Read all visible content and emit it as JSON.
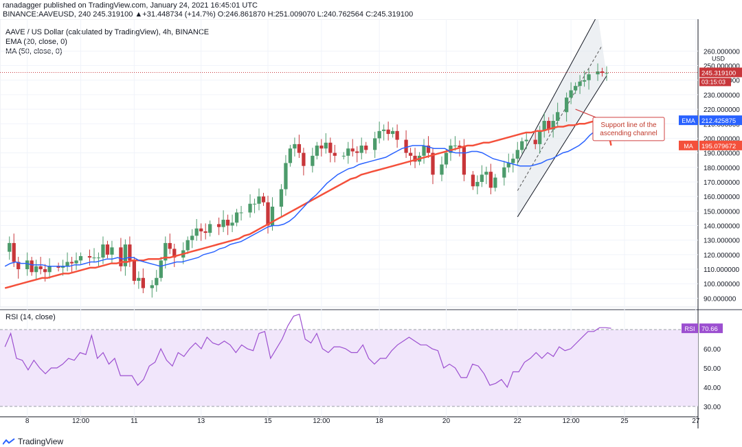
{
  "header": {
    "published_line": "ranadagger published on TradingView.com, January 24, 2021 16:45:01 UTC",
    "symbol_line": "BINANCE:AAVEUSD, 240",
    "ohlc": "245.319100 ▲+31.448734 (+14.7%) O:246.861870 H:251.009070 L:240.762564 C:245.319100"
  },
  "legend": {
    "title": "AAVE / US Dollar (calculated by TradingView), 4h, BINANCE",
    "ema": "EMA (20, close, 0)",
    "ma": "MA (50, close, 0)",
    "rsi": "RSI (14, close)"
  },
  "annotation": "Support line of the\nascending channel",
  "footer": {
    "brand": "TradingView"
  },
  "colors": {
    "up": "#4c9b6b",
    "down": "#c8363a",
    "ema": "#2962ff",
    "ma": "#f4503b",
    "rsi": "#9c4fd0",
    "channel_fill": "#dfe3ea",
    "rsi_band": "#f1e6fb"
  },
  "chart_data": {
    "type": "candlestick",
    "price_axis": {
      "unit": "USD",
      "ticks": [
        "260.000000",
        "250.000000",
        "240.000000",
        "230.000000",
        "220.000000",
        "210.000000",
        "200.000000",
        "190.000000",
        "180.000000",
        "170.000000",
        "160.000000",
        "150.000000",
        "140.000000",
        "130.000000",
        "120.000000",
        "110.000000",
        "100.000000",
        "90.000000"
      ],
      "tick_values": [
        260,
        250,
        240,
        230,
        220,
        210,
        200,
        190,
        180,
        170,
        160,
        150,
        140,
        130,
        120,
        110,
        100,
        90
      ],
      "range": [
        85,
        280
      ]
    },
    "x_axis": {
      "labels": [
        "8",
        "12:00",
        "11",
        "13",
        "15",
        "12:00",
        "18",
        "20",
        "22",
        "12:00",
        "25",
        "27"
      ],
      "label_bars": [
        5,
        17,
        29,
        44,
        59,
        71,
        84,
        99,
        115,
        127,
        139,
        155
      ],
      "bar_count": 156
    },
    "price_labels": {
      "last": {
        "value": 245.3191,
        "text": "245.319100",
        "countdown": "03:15:03"
      },
      "ema": {
        "value": 212.425875,
        "name": "EMA",
        "text": "212.425875"
      },
      "ma": {
        "value": 195.079672,
        "name": "MA",
        "text": "195.079672"
      },
      "axis_unit": "USD",
      "top_tick": "260.000000"
    },
    "closes": [
      122,
      128,
      115,
      110,
      116,
      108,
      112,
      110,
      108,
      112,
      111,
      112,
      115,
      114,
      116,
      119,
      118,
      118,
      118,
      127,
      120,
      125,
      112,
      127,
      116,
      102,
      104,
      97,
      99,
      104,
      116,
      128,
      124,
      118,
      123,
      130,
      133,
      138,
      136,
      135,
      141,
      139,
      144,
      140,
      142,
      149,
      149,
      155,
      155,
      160,
      156,
      140,
      153,
      165,
      183,
      193,
      196,
      190,
      181,
      188,
      195,
      193,
      197,
      190,
      188,
      188,
      193,
      191,
      190,
      195,
      192,
      200,
      205,
      206,
      203,
      205,
      199,
      190,
      188,
      184,
      188,
      195,
      190,
      175,
      182,
      190,
      195,
      195,
      194,
      175,
      167,
      170,
      175,
      177,
      166,
      173,
      180,
      183,
      186,
      192,
      198,
      199,
      196,
      205,
      212,
      206,
      212,
      218,
      228,
      233,
      236,
      239,
      240,
      244,
      246,
      245,
      245
    ],
    "close_bar_offset": 39,
    "early_closes": [
      122,
      128,
      115,
      110,
      116,
      108,
      112,
      110,
      108,
      112,
      111,
      112,
      115,
      114,
      116,
      119,
      118,
      118,
      118,
      127,
      120,
      125,
      112,
      127,
      116,
      102,
      104,
      97,
      99,
      104,
      116,
      128,
      124,
      118,
      123,
      130,
      133,
      138,
      136
    ],
    "ema_values": [
      112,
      114,
      115,
      114,
      114,
      113,
      113,
      113,
      112,
      112,
      112,
      112,
      112,
      113,
      113,
      114,
      115,
      115,
      116,
      117,
      117,
      118,
      117,
      118,
      118,
      116,
      115,
      114,
      113,
      112,
      113,
      114,
      115,
      115,
      116,
      117,
      118,
      120,
      121,
      122,
      124,
      125,
      127,
      128,
      129,
      131,
      133,
      135,
      137,
      139,
      140,
      140,
      141,
      143,
      146,
      150,
      154,
      158,
      161,
      165,
      169,
      172,
      175,
      177,
      179,
      180,
      182,
      183,
      184,
      185,
      186,
      187,
      189,
      191,
      193,
      194,
      195,
      195,
      195,
      194,
      193,
      193,
      193,
      191,
      190,
      190,
      190,
      191,
      191,
      190,
      188,
      186,
      185,
      184,
      183,
      182,
      181,
      181,
      181,
      182,
      183,
      185,
      186,
      188,
      190,
      191,
      193,
      195,
      198,
      202,
      205,
      208,
      211,
      212
    ],
    "ma_values": [
      97,
      98,
      99,
      100,
      101,
      102,
      103,
      104,
      104,
      105,
      106,
      107,
      107,
      108,
      109,
      110,
      111,
      111,
      112,
      113,
      114,
      114,
      115,
      115,
      116,
      116,
      116,
      117,
      117,
      117,
      118,
      118,
      119,
      120,
      121,
      122,
      123,
      124,
      125,
      126,
      127,
      128,
      129,
      130,
      131,
      133,
      134,
      136,
      138,
      140,
      142,
      144,
      146,
      148,
      150,
      152,
      154,
      156,
      158,
      160,
      162,
      164,
      166,
      168,
      170,
      172,
      173,
      175,
      176,
      177,
      178,
      179,
      180,
      181,
      182,
      183,
      184,
      185,
      186,
      187,
      188,
      189,
      190,
      191,
      192,
      193,
      194,
      195,
      195,
      196,
      197,
      197,
      198,
      199,
      200,
      201,
      202,
      203,
      204,
      204,
      205,
      205,
      206,
      207,
      208,
      208,
      209,
      209,
      210,
      210,
      211,
      212,
      212,
      213,
      195.08
    ],
    "channel": {
      "upper": {
        "from_bar": 115,
        "from_price": 183,
        "to_bar": 133,
        "to_price": 285
      },
      "lower": {
        "from_bar": 115,
        "from_price": 146,
        "to_bar": 135,
        "to_price": 243
      },
      "mid_dashed": {
        "from_bar": 115,
        "from_price": 164,
        "to_bar": 134,
        "to_price": 264
      }
    },
    "rsi": {
      "label": "RSI",
      "value_text": "70.66",
      "ticks": [
        "70.00",
        "60.00",
        "50.00",
        "40.00",
        "30.00"
      ],
      "tick_values": [
        70,
        60,
        50,
        40,
        30
      ],
      "range": [
        26,
        80
      ],
      "band": [
        30,
        70
      ],
      "values": [
        61,
        68,
        55,
        54,
        49,
        54,
        50,
        47,
        50,
        50,
        52,
        55,
        54,
        58,
        57,
        67,
        55,
        58,
        52,
        55,
        46,
        46,
        46,
        41,
        44,
        51,
        53,
        60,
        54,
        51,
        58,
        56,
        60,
        63,
        60,
        66,
        63,
        62,
        64,
        62,
        58,
        62,
        60,
        59,
        68,
        69,
        55,
        60,
        65,
        72,
        77,
        78,
        65,
        63,
        68,
        60,
        58,
        61,
        61,
        60,
        58,
        58,
        62,
        55,
        52,
        55,
        55,
        59,
        62,
        64,
        66,
        64,
        62,
        62,
        60,
        59,
        50,
        52,
        50,
        45,
        45,
        52,
        51,
        47,
        41,
        42,
        44,
        40,
        48,
        48,
        53,
        55,
        58,
        55,
        58,
        56,
        61,
        59,
        60,
        63,
        66,
        69,
        69,
        71,
        71,
        70.66
      ]
    }
  }
}
